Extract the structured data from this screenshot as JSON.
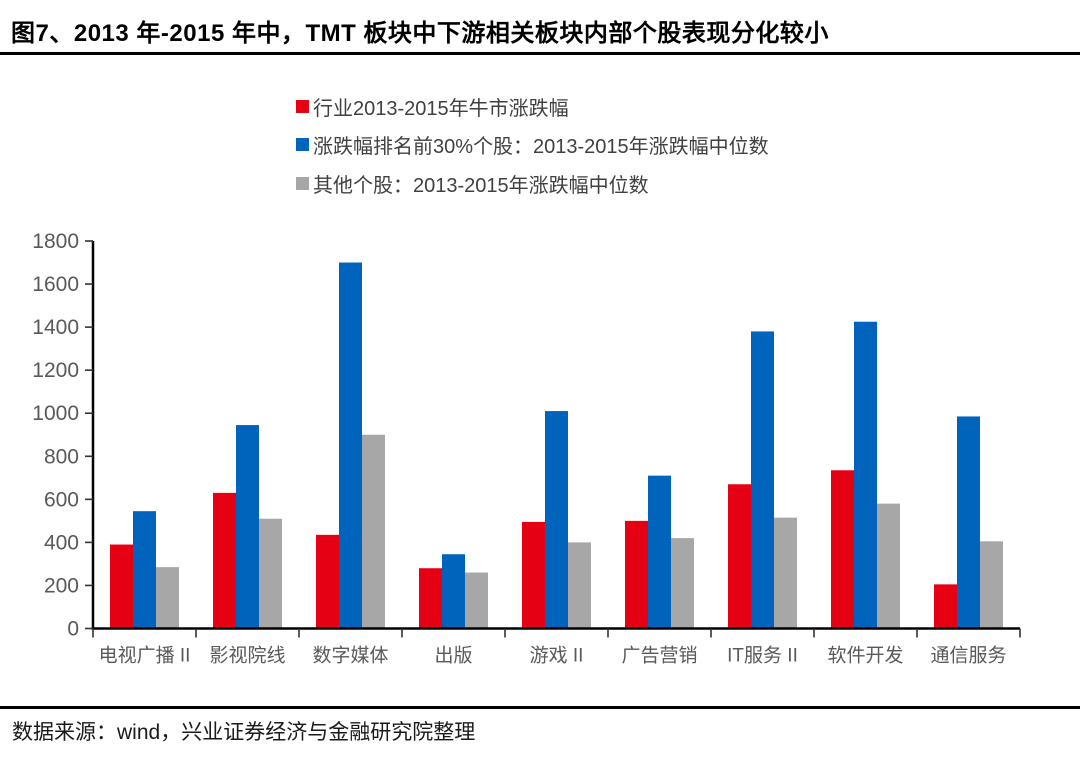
{
  "title": "图7、2013 年-2015 年中，TMT 板块中下游相关板块内部个股表现分化较小",
  "footer": {
    "text": "数据来源：wind，兴业证券经济与金融研究院整理"
  },
  "colors": {
    "series_red": "#e60014",
    "series_blue": "#0064bc",
    "series_gray": "#a7a7a7",
    "axis_line": "#000000",
    "tick_mark": "#333333",
    "tick_label": "#595959"
  },
  "chart_data": {
    "type": "bar",
    "title": "",
    "xlabel": "",
    "ylabel": "",
    "ylim": [
      0,
      1800
    ],
    "ytick_step": 200,
    "ytick_labels": [
      "0",
      "200",
      "400",
      "600",
      "800",
      "1000",
      "1200",
      "1400",
      "1600",
      "1800"
    ],
    "grid": false,
    "legend_position": "top-center",
    "categories": [
      "电视广播 II",
      "影视院线",
      "数字媒体",
      "出版",
      "游戏 II",
      "广告营销",
      "IT服务 II",
      "软件开发",
      "通信服务"
    ],
    "series": [
      {
        "name": "行业2013-2015年牛市涨跌幅",
        "color_key": "series_red",
        "values": [
          390,
          630,
          435,
          280,
          495,
          500,
          670,
          735,
          205
        ]
      },
      {
        "name": "涨跌幅排名前30%个股：2013-2015年涨跌幅中位数",
        "color_key": "series_blue",
        "values": [
          545,
          945,
          1700,
          345,
          1010,
          710,
          1380,
          1425,
          985
        ]
      },
      {
        "name": "其他个股：2013-2015年涨跌幅中位数",
        "color_key": "series_gray",
        "values": [
          285,
          510,
          900,
          260,
          400,
          420,
          515,
          580,
          405
        ]
      }
    ]
  }
}
